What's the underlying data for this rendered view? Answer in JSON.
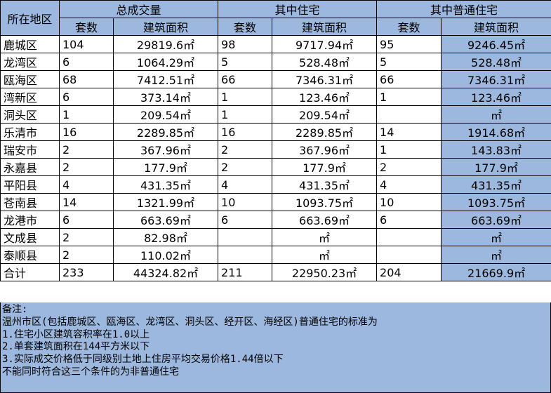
{
  "table": {
    "header": {
      "region": "所在地区",
      "group_total": "总成交量",
      "group_housing": "其中住宅",
      "group_ordinary": "其中普通住宅",
      "sets": "套数",
      "area": "建筑面积"
    },
    "rows": [
      {
        "region": "鹿城区",
        "total_sets": "104",
        "total_area": "29819.6㎡",
        "housing_sets": "98",
        "housing_area": "9717.94㎡",
        "ordinary_sets": "95",
        "ordinary_area": "9246.45㎡"
      },
      {
        "region": "龙湾区",
        "total_sets": "6",
        "total_area": "1064.29㎡",
        "housing_sets": "5",
        "housing_area": "528.48㎡",
        "ordinary_sets": "5",
        "ordinary_area": "528.48㎡"
      },
      {
        "region": "瓯海区",
        "total_sets": "68",
        "total_area": "7412.51㎡",
        "housing_sets": "66",
        "housing_area": "7346.31㎡",
        "ordinary_sets": "66",
        "ordinary_area": "7346.31㎡"
      },
      {
        "region": "湾新区",
        "total_sets": "6",
        "total_area": "373.14㎡",
        "housing_sets": "1",
        "housing_area": "123.46㎡",
        "ordinary_sets": "1",
        "ordinary_area": "123.46㎡"
      },
      {
        "region": "洞头区",
        "total_sets": "1",
        "total_area": "209.54㎡",
        "housing_sets": "1",
        "housing_area": "209.54㎡",
        "ordinary_sets": "",
        "ordinary_area": "㎡"
      },
      {
        "region": "乐清市",
        "total_sets": "16",
        "total_area": "2289.85㎡",
        "housing_sets": "16",
        "housing_area": "2289.85㎡",
        "ordinary_sets": "14",
        "ordinary_area": "1914.68㎡"
      },
      {
        "region": "瑞安市",
        "total_sets": "2",
        "total_area": "367.96㎡",
        "housing_sets": "2",
        "housing_area": "367.96㎡",
        "ordinary_sets": "1",
        "ordinary_area": "143.83㎡"
      },
      {
        "region": "永嘉县",
        "total_sets": "2",
        "total_area": "177.9㎡",
        "housing_sets": "2",
        "housing_area": "177.9㎡",
        "ordinary_sets": "2",
        "ordinary_area": "177.9㎡"
      },
      {
        "region": "平阳县",
        "total_sets": "4",
        "total_area": "431.35㎡",
        "housing_sets": "4",
        "housing_area": "431.35㎡",
        "ordinary_sets": "4",
        "ordinary_area": "431.35㎡"
      },
      {
        "region": "苍南县",
        "total_sets": "14",
        "total_area": "1321.99㎡",
        "housing_sets": "10",
        "housing_area": "1093.75㎡",
        "ordinary_sets": "10",
        "ordinary_area": "1093.75㎡"
      },
      {
        "region": "龙港市",
        "total_sets": "6",
        "total_area": "663.69㎡",
        "housing_sets": "6",
        "housing_area": "663.69㎡",
        "ordinary_sets": "6",
        "ordinary_area": "663.69㎡"
      },
      {
        "region": "文成县",
        "total_sets": "2",
        "total_area": "82.98㎡",
        "housing_sets": "",
        "housing_area": "㎡",
        "ordinary_sets": "",
        "ordinary_area": "㎡"
      },
      {
        "region": "泰顺县",
        "total_sets": "2",
        "total_area": "110.02㎡",
        "housing_sets": "",
        "housing_area": "㎡",
        "ordinary_sets": "",
        "ordinary_area": "㎡"
      },
      {
        "region": "合计",
        "total_sets": "233",
        "total_area": "44324.82㎡",
        "housing_sets": "211",
        "housing_area": "22950.23㎡",
        "ordinary_sets": "204",
        "ordinary_area": "21669.9㎡"
      }
    ]
  },
  "notes": {
    "title": "备注:",
    "lines": [
      "温州市区(包括鹿城区、瓯海区、龙湾区、洞头区、经开区、海经区)普通住宅的标准为",
      "1.住宅小区建筑容积率在1.0以上",
      "2.单套建筑面积在144平方米以下",
      "3.实际成交价格低于同级别土地上住房平均交易价格1.44倍以下",
      "不能同时符合这三个条件的为非普通住宅"
    ]
  },
  "colors": {
    "header_fill": "#9cb8de",
    "ordinary_area_fill": "#9cb8de",
    "border": "#000000"
  }
}
